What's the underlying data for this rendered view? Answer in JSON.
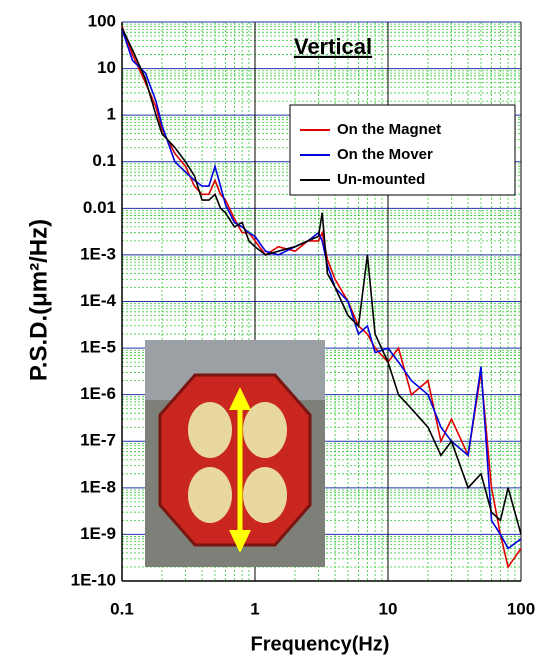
{
  "chart_data": {
    "type": "line",
    "title": "Vertical",
    "xlabel": "Frequency(Hz)",
    "ylabel": "P.S.D.(μm²/Hz)",
    "xscale": "log",
    "yscale": "log",
    "grid": true,
    "legend": "upper right",
    "xlim": [
      0.1,
      100
    ],
    "xticks": [
      0.1,
      1,
      10,
      100
    ],
    "ylim": [
      1e-10,
      100
    ],
    "yticks": [
      {
        "value": 1e-10,
        "label": "1E-10"
      },
      {
        "value": 1e-09,
        "label": "1E-9"
      },
      {
        "value": 1e-08,
        "label": "1E-8"
      },
      {
        "value": 1e-07,
        "label": "1E-7"
      },
      {
        "value": 1e-06,
        "label": "1E-6"
      },
      {
        "value": 1e-05,
        "label": "1E-5"
      },
      {
        "value": 0.0001,
        "label": "1E-4"
      },
      {
        "value": 0.001,
        "label": "1E-3"
      },
      0.01,
      0.1,
      1,
      10,
      100
    ],
    "x": [
      0.1,
      0.12,
      0.15,
      0.18,
      0.2,
      0.25,
      0.3,
      0.35,
      0.4,
      0.45,
      0.5,
      0.55,
      0.6,
      0.7,
      0.8,
      0.9,
      1,
      1.2,
      1.5,
      2,
      2.5,
      3,
      3.2,
      3.5,
      4,
      5,
      6,
      7,
      8,
      10,
      12,
      15,
      20,
      25,
      30,
      40,
      50,
      60,
      70,
      80,
      100
    ],
    "series": [
      {
        "name": "On the Magnet",
        "color": "#e00000",
        "values": [
          80,
          20,
          5,
          1.5,
          0.5,
          0.15,
          0.08,
          0.03,
          0.02,
          0.02,
          0.04,
          0.02,
          0.015,
          0.006,
          0.003,
          0.003,
          0.002,
          0.001,
          0.0015,
          0.0012,
          0.002,
          0.002,
          0.003,
          0.0008,
          0.0003,
          0.0001,
          3e-05,
          2e-05,
          1e-05,
          5e-06,
          1e-05,
          1e-06,
          2e-06,
          1e-07,
          3e-07,
          5e-08,
          3e-06,
          1e-08,
          1e-09,
          2e-10,
          5e-10
        ]
      },
      {
        "name": "On the Mover",
        "color": "#0000e0",
        "values": [
          70,
          15,
          8,
          2,
          0.6,
          0.1,
          0.06,
          0.04,
          0.03,
          0.03,
          0.08,
          0.03,
          0.012,
          0.005,
          0.004,
          0.003,
          0.0025,
          0.0012,
          0.001,
          0.0015,
          0.002,
          0.003,
          0.002,
          0.0006,
          0.0002,
          0.0001,
          2e-05,
          3e-05,
          8e-06,
          1e-05,
          5e-06,
          2e-06,
          1e-06,
          2e-07,
          1e-07,
          5e-08,
          4e-06,
          2e-09,
          1e-09,
          5e-10,
          8e-10
        ]
      },
      {
        "name": "Un-mounted",
        "color": "#000000",
        "values": [
          75,
          25,
          6,
          1,
          0.4,
          0.2,
          0.1,
          0.05,
          0.015,
          0.015,
          0.02,
          0.01,
          0.008,
          0.004,
          0.005,
          0.002,
          0.0015,
          0.001,
          0.0012,
          0.0015,
          0.002,
          0.0025,
          0.008,
          0.0004,
          0.0002,
          5e-05,
          3e-05,
          0.001,
          2e-05,
          5e-06,
          1e-06,
          5e-07,
          2e-07,
          5e-08,
          1e-07,
          1e-08,
          2e-08,
          3e-09,
          2e-09,
          1e-08,
          1e-09
        ]
      }
    ]
  }
}
